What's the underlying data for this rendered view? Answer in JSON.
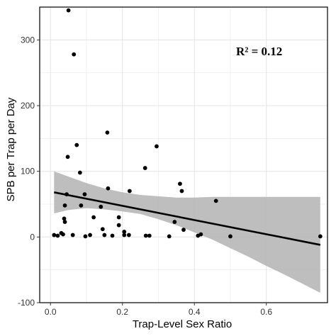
{
  "chart_data": {
    "type": "scatter",
    "xlabel": "Trap-Level Sex Ratio",
    "ylabel": "SPB per Trap per Day",
    "xlim": [
      -0.03,
      0.77
    ],
    "ylim": [
      -100,
      350
    ],
    "x_ticks": [
      0.0,
      0.2,
      0.4,
      0.6
    ],
    "x_tick_labels": [
      "0.0",
      "0.2",
      "0.4",
      "0.6"
    ],
    "y_ticks": [
      -100,
      0,
      100,
      200,
      300
    ],
    "y_tick_labels": [
      "-100",
      "0",
      "100",
      "200",
      "300"
    ],
    "grid": true,
    "annotation": {
      "text": "R² = 0.12"
    },
    "points": [
      {
        "x": 0.01,
        "y": 3
      },
      {
        "x": 0.02,
        "y": 2
      },
      {
        "x": 0.03,
        "y": 6
      },
      {
        "x": 0.035,
        "y": 4
      },
      {
        "x": 0.038,
        "y": 28
      },
      {
        "x": 0.04,
        "y": 23
      },
      {
        "x": 0.04,
        "y": 48
      },
      {
        "x": 0.045,
        "y": 65
      },
      {
        "x": 0.048,
        "y": 122
      },
      {
        "x": 0.05,
        "y": 345
      },
      {
        "x": 0.062,
        "y": 3
      },
      {
        "x": 0.065,
        "y": 278
      },
      {
        "x": 0.073,
        "y": 140
      },
      {
        "x": 0.082,
        "y": 98
      },
      {
        "x": 0.085,
        "y": 48
      },
      {
        "x": 0.095,
        "y": 65
      },
      {
        "x": 0.097,
        "y": 1
      },
      {
        "x": 0.11,
        "y": 3
      },
      {
        "x": 0.12,
        "y": 30
      },
      {
        "x": 0.14,
        "y": 46
      },
      {
        "x": 0.145,
        "y": 12
      },
      {
        "x": 0.15,
        "y": 3
      },
      {
        "x": 0.158,
        "y": 159
      },
      {
        "x": 0.16,
        "y": 74
      },
      {
        "x": 0.172,
        "y": 2
      },
      {
        "x": 0.19,
        "y": 18
      },
      {
        "x": 0.19,
        "y": 30
      },
      {
        "x": 0.205,
        "y": 3
      },
      {
        "x": 0.205,
        "y": 8
      },
      {
        "x": 0.218,
        "y": 3
      },
      {
        "x": 0.22,
        "y": 70
      },
      {
        "x": 0.263,
        "y": 105
      },
      {
        "x": 0.265,
        "y": 2
      },
      {
        "x": 0.275,
        "y": 2
      },
      {
        "x": 0.295,
        "y": 138
      },
      {
        "x": 0.33,
        "y": 1
      },
      {
        "x": 0.345,
        "y": 23
      },
      {
        "x": 0.36,
        "y": 81
      },
      {
        "x": 0.365,
        "y": 70
      },
      {
        "x": 0.37,
        "y": 11
      },
      {
        "x": 0.41,
        "y": 2
      },
      {
        "x": 0.418,
        "y": 4
      },
      {
        "x": 0.46,
        "y": 55
      },
      {
        "x": 0.5,
        "y": 1
      },
      {
        "x": 0.75,
        "y": 1
      }
    ],
    "fit": {
      "x": [
        0.01,
        0.75
      ],
      "y": [
        68,
        -12
      ],
      "ci_x": [
        0.01,
        0.05,
        0.1,
        0.15,
        0.2,
        0.25,
        0.3,
        0.35,
        0.4,
        0.45,
        0.5,
        0.55,
        0.6,
        0.65,
        0.7,
        0.75
      ],
      "ci_upper": [
        100,
        92,
        82,
        74,
        68,
        64,
        62,
        60,
        60,
        61,
        61,
        61,
        61,
        61,
        61,
        61
      ],
      "ci_lower": [
        36,
        41,
        44,
        42,
        39,
        35,
        27,
        18,
        7,
        -4,
        -17,
        -30,
        -44,
        -57,
        -71,
        -85
      ]
    },
    "colors": {
      "points": "#000000",
      "fit_line": "#000000",
      "ci_band": "#b3b3b3",
      "grid": "#e6e6e6",
      "panel_border": "#000000"
    }
  }
}
